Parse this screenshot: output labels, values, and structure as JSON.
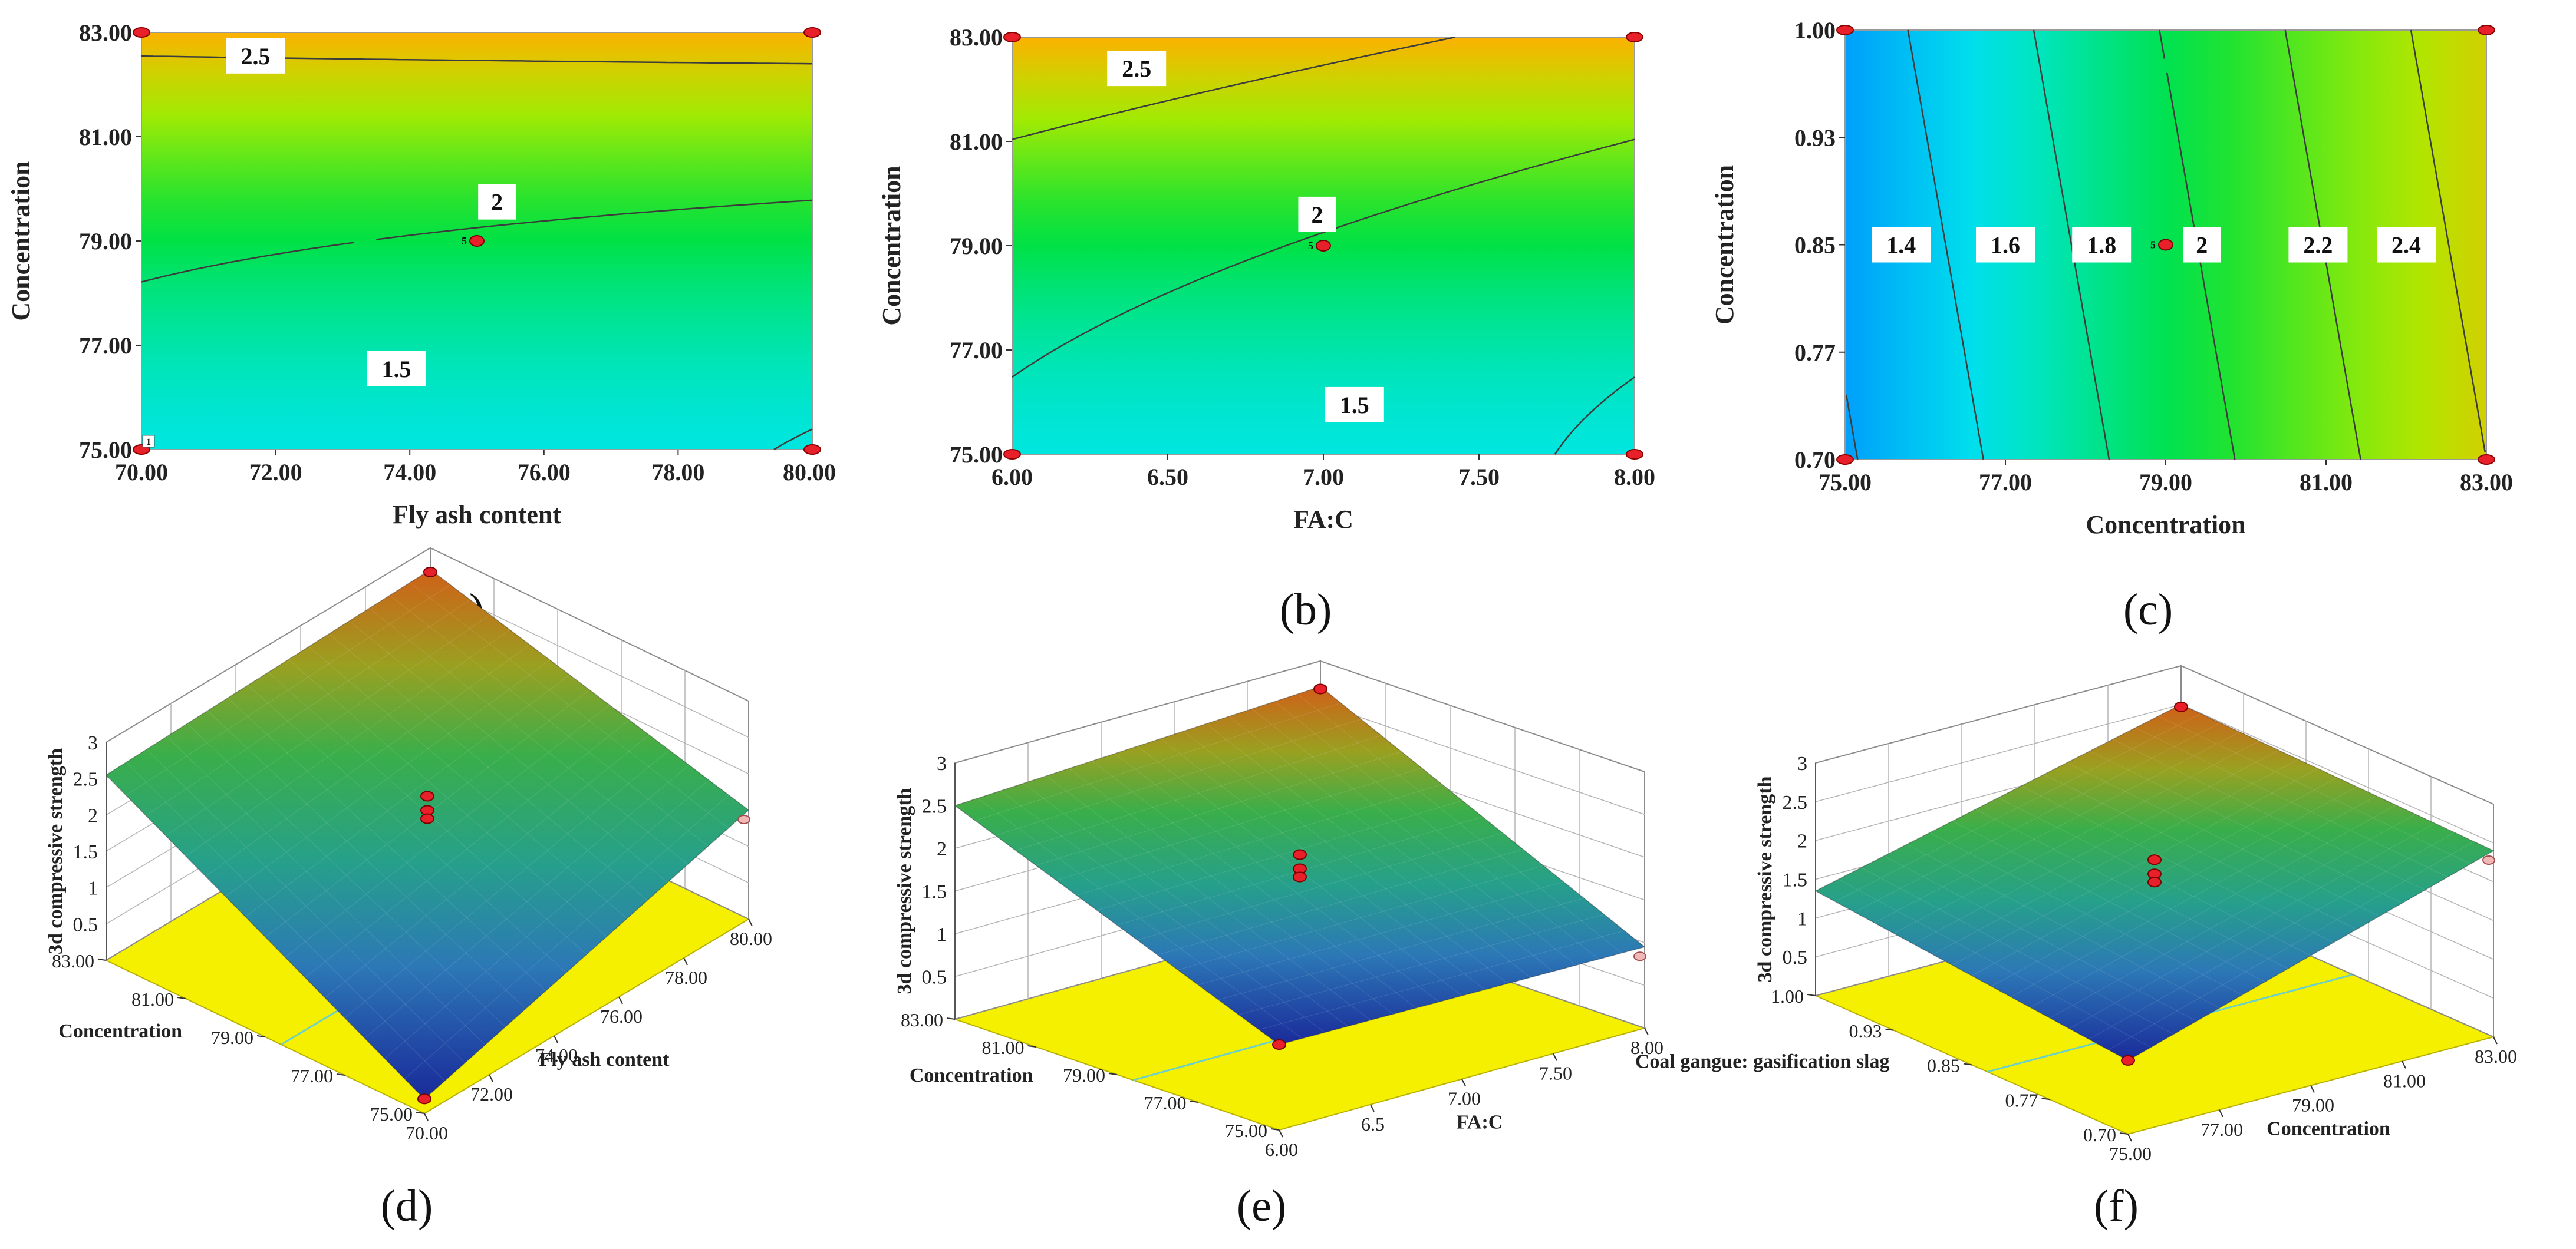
{
  "chart_data": [
    {
      "id": "a",
      "type": "contour",
      "panel_label": "(a)",
      "xlabel": "Fly ash content",
      "ylabel": "Concentration",
      "xlim": [
        70,
        80
      ],
      "ylim": [
        75,
        83
      ],
      "x_ticks": [
        "70.00",
        "72.00",
        "74.00",
        "76.00",
        "78.00",
        "80.00"
      ],
      "y_ticks": [
        "75.00",
        "77.00",
        "79.00",
        "81.00",
        "83.00"
      ],
      "contour_labels": [
        {
          "text": "2.5",
          "x": 71.7,
          "y": 82.55
        },
        {
          "text": "2",
          "x": 75.3,
          "y": 79.75
        },
        {
          "text": "1.5",
          "x": 73.8,
          "y": 76.55
        }
      ],
      "center_point": {
        "x": 75,
        "y": 79,
        "label": "5"
      },
      "design_points": [
        [
          70,
          83
        ],
        [
          80,
          83
        ],
        [
          70,
          75
        ],
        [
          80,
          75
        ]
      ],
      "corner_label": "1"
    },
    {
      "id": "b",
      "type": "contour",
      "panel_label": "(b)",
      "xlabel": "FA:C",
      "ylabel": "Concentration",
      "xlim": [
        6,
        8
      ],
      "ylim": [
        75,
        83
      ],
      "x_ticks": [
        "6.00",
        "6.50",
        "7.00",
        "7.50",
        "8.00"
      ],
      "y_ticks": [
        "75.00",
        "77.00",
        "79.00",
        "81.00",
        "83.00"
      ],
      "contour_labels": [
        {
          "text": "2.5",
          "x": 6.4,
          "y": 82.4
        },
        {
          "text": "2",
          "x": 6.98,
          "y": 79.6
        },
        {
          "text": "1.5",
          "x": 7.1,
          "y": 75.95
        }
      ],
      "center_point": {
        "x": 7,
        "y": 79,
        "label": "5"
      },
      "design_points": [
        [
          6,
          83
        ],
        [
          8,
          83
        ],
        [
          6,
          75
        ],
        [
          8,
          75
        ]
      ]
    },
    {
      "id": "c",
      "type": "contour",
      "panel_label": "(c)",
      "xlabel": "Concentration",
      "ylabel": "Concentration",
      "xlim": [
        75,
        83
      ],
      "ylim": [
        0.7,
        1.0
      ],
      "x_ticks": [
        "75.00",
        "77.00",
        "79.00",
        "81.00",
        "83.00"
      ],
      "y_ticks": [
        "0.70",
        "0.77",
        "0.85",
        "0.93",
        "1.00"
      ],
      "contour_labels": [
        {
          "text": "1.4",
          "x": 75.7,
          "y": 0.85
        },
        {
          "text": "1.6",
          "x": 77.0,
          "y": 0.85
        },
        {
          "text": "1.8",
          "x": 78.2,
          "y": 0.85
        },
        {
          "text": "2",
          "x": 79.45,
          "y": 0.85
        },
        {
          "text": "2.2",
          "x": 80.9,
          "y": 0.85
        },
        {
          "text": "2.4",
          "x": 82.0,
          "y": 0.85
        }
      ],
      "center_point": {
        "x": 79,
        "y": 0.85,
        "label": "5"
      },
      "design_points": [
        [
          75,
          1.0
        ],
        [
          83,
          1.0
        ],
        [
          75,
          0.7
        ],
        [
          83,
          0.7
        ]
      ]
    },
    {
      "id": "d",
      "type": "surface3d",
      "panel_label": "(d)",
      "zlabel": "3d compressive strength",
      "z_ticks": [
        "0.5",
        "1",
        "1.5",
        "2",
        "2.5",
        "3"
      ],
      "left_axis": {
        "label": "Concentration",
        "ticks": [
          "83.00",
          "81.00",
          "79.00",
          "77.00",
          "75.00"
        ]
      },
      "right_axis": {
        "label": "Fly ash content",
        "ticks": [
          "70.00",
          "72.00",
          "74.00",
          "76.00",
          "78.00",
          "80.00"
        ]
      },
      "corner_values": {
        "back": 2.7,
        "left": 2.55,
        "front": 0.2,
        "right": 1.5
      }
    },
    {
      "id": "e",
      "type": "surface3d",
      "panel_label": "(e)",
      "zlabel": "3d compressive strength",
      "z_ticks": [
        "0.5",
        "1",
        "1.5",
        "2",
        "2.5",
        "3"
      ],
      "left_axis": {
        "label": "Concentration",
        "ticks": [
          "83.00",
          "81.00",
          "79.00",
          "77.00",
          "75.00"
        ]
      },
      "right_axis": {
        "label": "FA:C",
        "ticks": [
          "6.00",
          "6.5",
          "7.00",
          "7.50",
          "8.00"
        ]
      },
      "corner_values": {
        "back": 2.7,
        "left": 2.5,
        "front": 1.0,
        "right": 0.95
      }
    },
    {
      "id": "f",
      "type": "surface3d",
      "panel_label": "(f)",
      "zlabel": "3d compressive strength",
      "z_ticks": [
        "0.5",
        "1",
        "1.5",
        "2",
        "2.5",
        "3"
      ],
      "left_axis": {
        "label": "Coal gangue: gasification slag",
        "ticks": [
          "1.00",
          "0.93",
          "0.85",
          "0.77",
          "0.70"
        ]
      },
      "right_axis": {
        "label": "Concentration",
        "ticks": [
          "75.00",
          "77.00",
          "79.00",
          "81.00",
          "83.00"
        ]
      },
      "corner_values": {
        "back": 2.5,
        "left": 1.35,
        "front": 0.95,
        "right": 2.4
      }
    }
  ]
}
